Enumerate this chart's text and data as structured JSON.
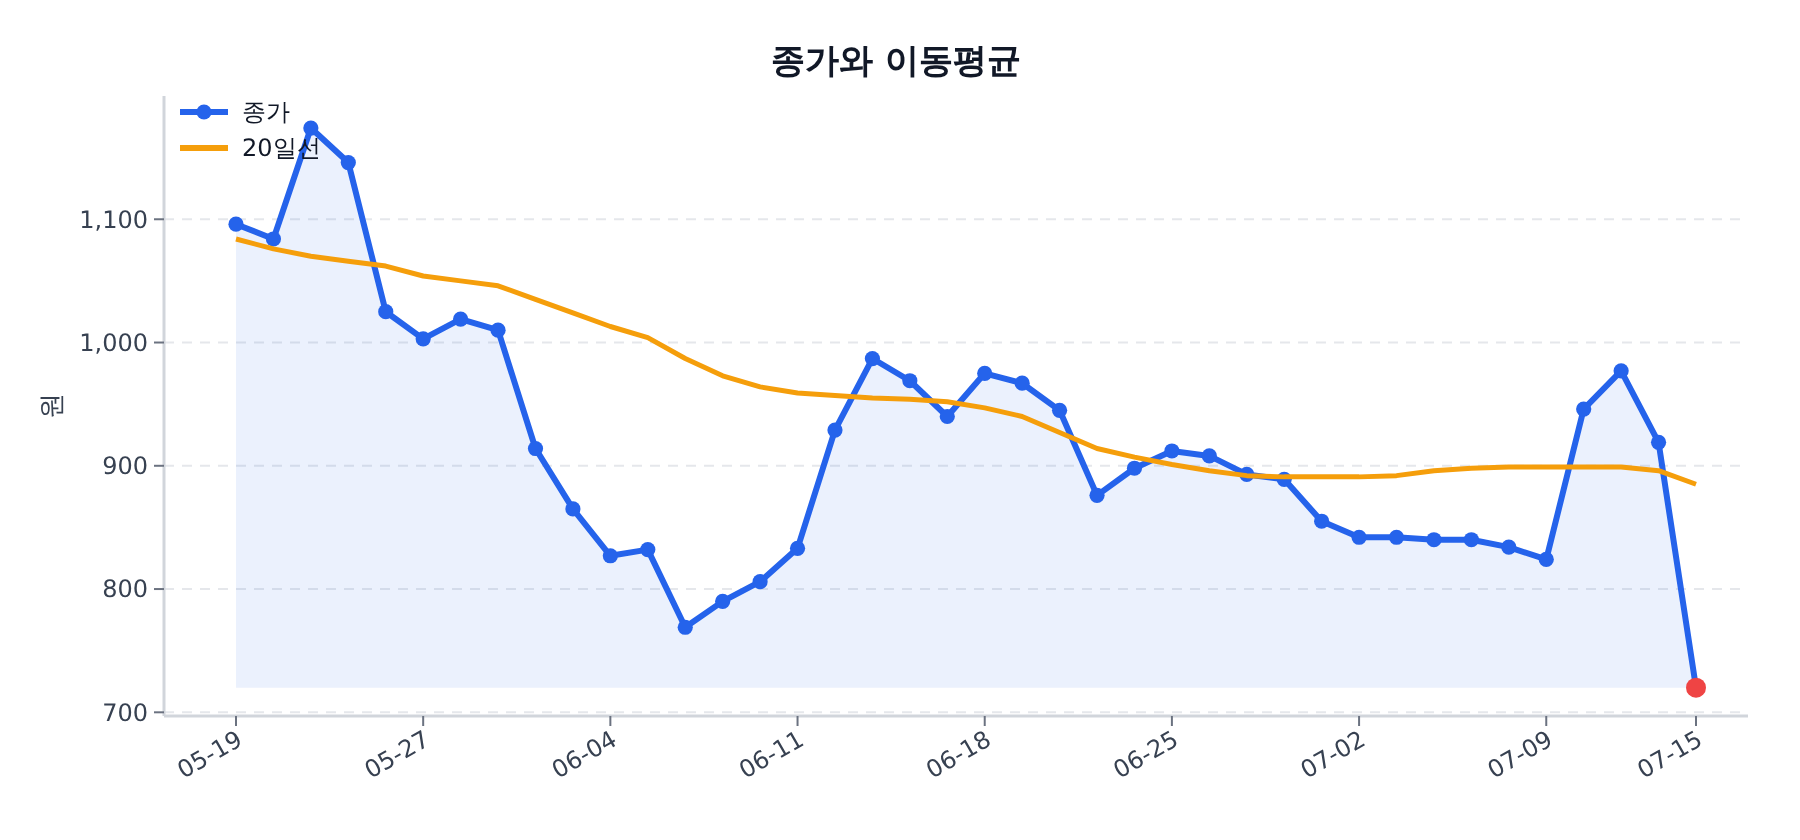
{
  "chart_data": {
    "type": "line",
    "title": "종가와 이동평균",
    "ylabel": "원",
    "categories": [
      "05-19",
      null,
      null,
      null,
      null,
      "05-27",
      null,
      null,
      null,
      null,
      "06-04",
      null,
      null,
      null,
      null,
      "06-11",
      null,
      null,
      null,
      null,
      "06-18",
      null,
      null,
      null,
      null,
      "06-25",
      null,
      null,
      null,
      null,
      "07-02",
      null,
      null,
      null,
      null,
      "07-09",
      null,
      null,
      null,
      "07-15"
    ],
    "ylim": [
      697,
      1200
    ],
    "yticks": [
      {
        "value": 700,
        "label": "700"
      },
      {
        "value": 800,
        "label": "800"
      },
      {
        "value": 900,
        "label": "900"
      },
      {
        "value": 1000,
        "label": "1,000"
      },
      {
        "value": 1100,
        "label": "1,100"
      }
    ],
    "grid": "y",
    "legend": "top left",
    "series": [
      {
        "name": "종가",
        "type": "area",
        "marker": "circle",
        "color": "#2563eb",
        "colors": [
          "#2563eb",
          "#2563eb",
          "#2563eb",
          "#2563eb",
          "#2563eb",
          "#2563eb",
          "#2563eb",
          "#2563eb",
          "#2563eb",
          "#2563eb",
          "#2563eb",
          "#2563eb",
          "#2563eb",
          "#2563eb",
          "#2563eb",
          "#2563eb",
          "#2563eb",
          "#2563eb",
          "#2563eb",
          "#2563eb",
          "#2563eb",
          "#2563eb",
          "#2563eb",
          "#2563eb",
          "#2563eb",
          "#2563eb",
          "#2563eb",
          "#2563eb",
          "#2563eb",
          "#2563eb",
          "#2563eb",
          "#2563eb",
          "#2563eb",
          "#2563eb",
          "#2563eb",
          "#2563eb",
          "#2563eb",
          "#2563eb",
          "#2563eb",
          "#ef4444"
        ],
        "values": [
          1096,
          1084,
          1174,
          1146,
          1025,
          1003,
          1019,
          1010,
          914,
          865,
          827,
          832,
          769,
          790,
          806,
          833,
          929,
          987,
          969,
          940,
          975,
          967,
          945,
          876,
          898,
          912,
          908,
          893,
          889,
          855,
          842,
          842,
          840,
          840,
          834,
          824,
          946,
          977,
          919,
          720
        ]
      },
      {
        "name": "20일선",
        "marker": "none",
        "color": "#f59e0b",
        "values": [
          1084,
          1076,
          1070,
          1066,
          1062,
          1054,
          1050,
          1046,
          1035,
          1024,
          1013,
          1004,
          987,
          973,
          964,
          959,
          957,
          955,
          954,
          952,
          947,
          940,
          927,
          914,
          907,
          901,
          896,
          892,
          891,
          891,
          891,
          892,
          896,
          898,
          899,
          899,
          899,
          899,
          896,
          885
        ]
      }
    ]
  }
}
